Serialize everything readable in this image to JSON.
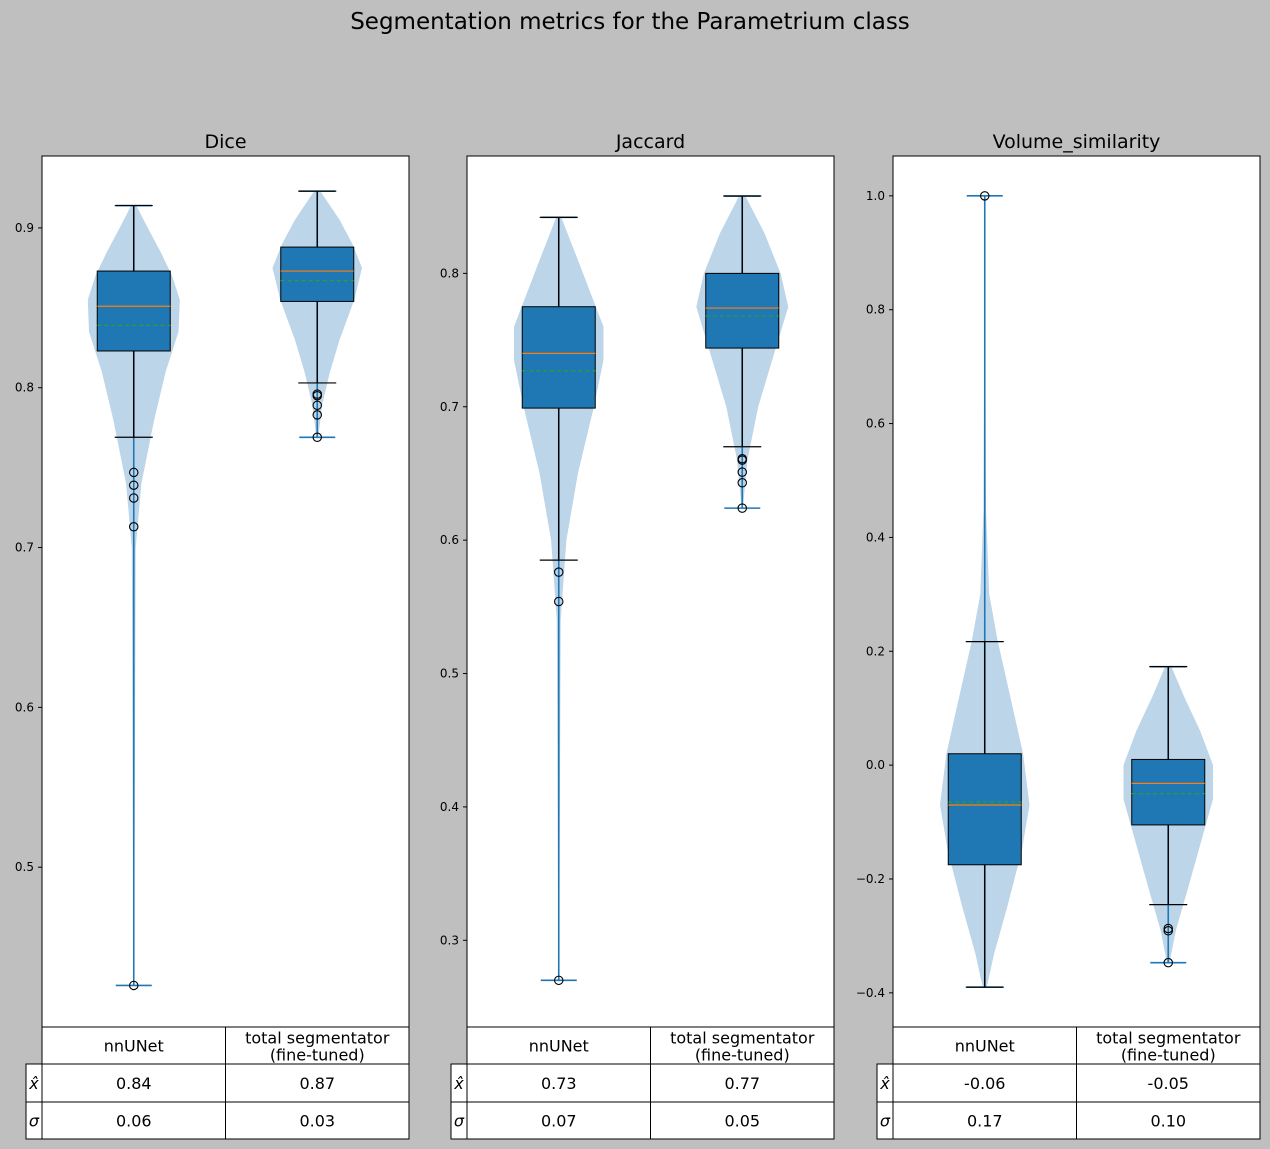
{
  "suptitle": "Segmentation metrics for the Parametrium class",
  "colors": {
    "figure_bg": "#bfbfbf",
    "axes_bg": "#ffffff",
    "box_fill": "#1f77b4",
    "violin_fill": "#bcd5e9",
    "violin_line": "#1f77b4",
    "median_line": "#ff7f0e",
    "mean_line": "#2ca02c"
  },
  "table_row_labels": [
    "x̂",
    "σ"
  ],
  "chart_data": [
    {
      "type": "box+violin",
      "title": "Dice",
      "categories": [
        "nnUNet",
        "total segmentator\n(fine-tuned)"
      ],
      "ylim": [
        0.4,
        0.945
      ],
      "yticks": [
        0.5,
        0.6,
        0.7,
        0.8,
        0.9
      ],
      "ytick_labels": [
        "0.5",
        "0.6",
        "0.7",
        "0.8",
        "0.9"
      ],
      "grid": false,
      "series": [
        {
          "name": "nnUNet",
          "min": 0.426,
          "max": 0.914,
          "q1": 0.823,
          "median": 0.851,
          "mean": 0.839,
          "q3": 0.873,
          "whisker_low": 0.769,
          "whisker_high": 0.914,
          "outliers": [
            0.747,
            0.739,
            0.731,
            0.713,
            0.426
          ],
          "violin": [
            [
              0.426,
              0.0005
            ],
            [
              0.7,
              0.003
            ],
            [
              0.74,
              0.012
            ],
            [
              0.78,
              0.032
            ],
            [
              0.81,
              0.05
            ],
            [
              0.835,
              0.07
            ],
            [
              0.855,
              0.072
            ],
            [
              0.87,
              0.06
            ],
            [
              0.885,
              0.042
            ],
            [
              0.9,
              0.022
            ],
            [
              0.914,
              0.004
            ]
          ]
        },
        {
          "name": "total segmentator (fine-tuned)",
          "min": 0.769,
          "max": 0.923,
          "q1": 0.854,
          "median": 0.873,
          "mean": 0.867,
          "q3": 0.888,
          "whisker_low": 0.803,
          "whisker_high": 0.923,
          "outliers": [
            0.796,
            0.795,
            0.789,
            0.783,
            0.769
          ],
          "violin": [
            [
              0.769,
              0.0015
            ],
            [
              0.79,
              0.008
            ],
            [
              0.81,
              0.02
            ],
            [
              0.83,
              0.035
            ],
            [
              0.855,
              0.058
            ],
            [
              0.875,
              0.07
            ],
            [
              0.89,
              0.055
            ],
            [
              0.905,
              0.035
            ],
            [
              0.923,
              0.005
            ]
          ]
        }
      ],
      "table": {
        "mean": [
          "0.84",
          "0.87"
        ],
        "std": [
          "0.06",
          "0.03"
        ]
      }
    },
    {
      "type": "box+violin",
      "title": "Jaccard",
      "categories": [
        "nnUNet",
        "total segmentator\n(fine-tuned)"
      ],
      "ylim": [
        0.235,
        0.888
      ],
      "yticks": [
        0.3,
        0.4,
        0.5,
        0.6,
        0.7,
        0.8
      ],
      "ytick_labels": [
        "0.3",
        "0.4",
        "0.5",
        "0.6",
        "0.7",
        "0.8"
      ],
      "grid": false,
      "series": [
        {
          "name": "nnUNet",
          "min": 0.27,
          "max": 0.842,
          "q1": 0.699,
          "median": 0.74,
          "mean": 0.727,
          "q3": 0.775,
          "whisker_low": 0.585,
          "whisker_high": 0.842,
          "outliers": [
            0.576,
            0.554,
            0.27
          ],
          "violin": [
            [
              0.27,
              0.0005
            ],
            [
              0.54,
              0.003
            ],
            [
              0.6,
              0.012
            ],
            [
              0.65,
              0.03
            ],
            [
              0.7,
              0.055
            ],
            [
              0.735,
              0.07
            ],
            [
              0.76,
              0.07
            ],
            [
              0.785,
              0.05
            ],
            [
              0.81,
              0.03
            ],
            [
              0.842,
              0.004
            ]
          ]
        },
        {
          "name": "total segmentator (fine-tuned)",
          "min": 0.624,
          "max": 0.858,
          "q1": 0.744,
          "median": 0.774,
          "mean": 0.768,
          "q3": 0.8,
          "whisker_low": 0.67,
          "whisker_high": 0.858,
          "outliers": [
            0.661,
            0.66,
            0.651,
            0.643,
            0.624
          ],
          "violin": [
            [
              0.624,
              0.001
            ],
            [
              0.66,
              0.008
            ],
            [
              0.7,
              0.025
            ],
            [
              0.74,
              0.05
            ],
            [
              0.775,
              0.072
            ],
            [
              0.8,
              0.06
            ],
            [
              0.83,
              0.035
            ],
            [
              0.858,
              0.005
            ]
          ]
        }
      ],
      "table": {
        "mean": [
          "0.73",
          "0.77"
        ],
        "std": [
          "0.07",
          "0.05"
        ]
      }
    },
    {
      "type": "box+violin",
      "title": "Volume_similarity",
      "categories": [
        "nnUNet",
        "total segmentator\n(fine-tuned)"
      ],
      "ylim": [
        -0.46,
        1.07
      ],
      "yticks": [
        -0.4,
        -0.2,
        0.0,
        0.2,
        0.4,
        0.6,
        0.8,
        1.0
      ],
      "ytick_labels": [
        "−0.4",
        "−0.2",
        "0.0",
        "0.2",
        "0.4",
        "0.6",
        "0.8",
        "1.0"
      ],
      "grid": false,
      "series": [
        {
          "name": "nnUNet",
          "min": -0.39,
          "max": 1.0,
          "q1": -0.175,
          "median": -0.07,
          "mean": -0.065,
          "q3": 0.02,
          "whisker_low": -0.39,
          "whisker_high": 0.217,
          "outliers": [
            1.0
          ],
          "violin": [
            [
              -0.39,
              0.003
            ],
            [
              -0.33,
              0.015
            ],
            [
              -0.25,
              0.035
            ],
            [
              -0.15,
              0.058
            ],
            [
              -0.07,
              0.07
            ],
            [
              0.02,
              0.06
            ],
            [
              0.12,
              0.04
            ],
            [
              0.22,
              0.02
            ],
            [
              0.3,
              0.007
            ],
            [
              0.45,
              0.002
            ],
            [
              0.7,
              0.001
            ],
            [
              1.0,
              0.0005
            ]
          ]
        },
        {
          "name": "total segmentator (fine-tuned)",
          "min": -0.347,
          "max": 0.173,
          "q1": -0.105,
          "median": -0.032,
          "mean": -0.05,
          "q3": 0.01,
          "whisker_low": -0.245,
          "whisker_high": 0.173,
          "outliers": [
            -0.287,
            -0.291,
            -0.347
          ],
          "violin": [
            [
              -0.347,
              0.002
            ],
            [
              -0.29,
              0.012
            ],
            [
              -0.22,
              0.03
            ],
            [
              -0.14,
              0.05
            ],
            [
              -0.06,
              0.07
            ],
            [
              0.0,
              0.07
            ],
            [
              0.06,
              0.05
            ],
            [
              0.12,
              0.025
            ],
            [
              0.173,
              0.005
            ]
          ]
        }
      ],
      "table": {
        "mean": [
          "-0.06",
          "-0.05"
        ],
        "std": [
          "0.17",
          "0.10"
        ]
      }
    }
  ]
}
